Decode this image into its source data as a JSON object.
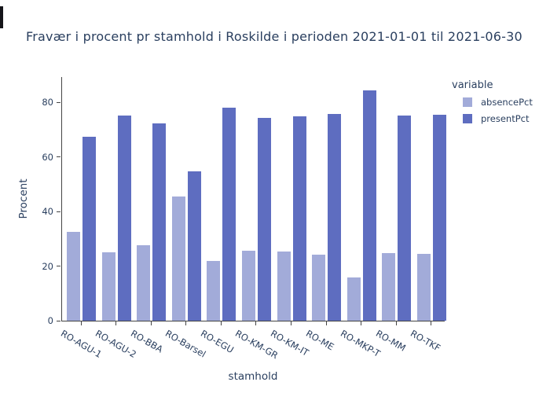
{
  "chart_data": {
    "type": "bar",
    "title": "Fravær i procent pr stamhold i Roskilde i perioden 2021-01-01 til 2021-06-30",
    "xlabel": "stamhold",
    "ylabel": "Procent",
    "legend_title": "variable",
    "legend_position": "top-right",
    "grid": false,
    "ylim": [
      0,
      89
    ],
    "yticks": [
      0,
      20,
      40,
      60,
      80
    ],
    "categories": [
      "RO-AGU-1",
      "RO-AGU-2",
      "RO-BBA",
      "RO-Barsel",
      "RO-EGU",
      "RO-KM-GR",
      "RO-KM-IT",
      "RO-ME",
      "RO-MKP-T",
      "RO-MM",
      "RO-TKF"
    ],
    "series": [
      {
        "name": "absencePct",
        "color": "#a2abd9",
        "values": [
          32.5,
          24.9,
          27.7,
          45.4,
          22.0,
          25.6,
          25.2,
          24.3,
          15.7,
          24.7,
          24.5
        ]
      },
      {
        "name": "presentPct",
        "color": "#5e6dc0",
        "values": [
          67.2,
          75.1,
          72.3,
          54.6,
          77.9,
          74.3,
          74.7,
          75.6,
          84.2,
          75.2,
          75.4
        ]
      }
    ],
    "axis_color": "#444444",
    "text_color": "#2a3f5f"
  }
}
